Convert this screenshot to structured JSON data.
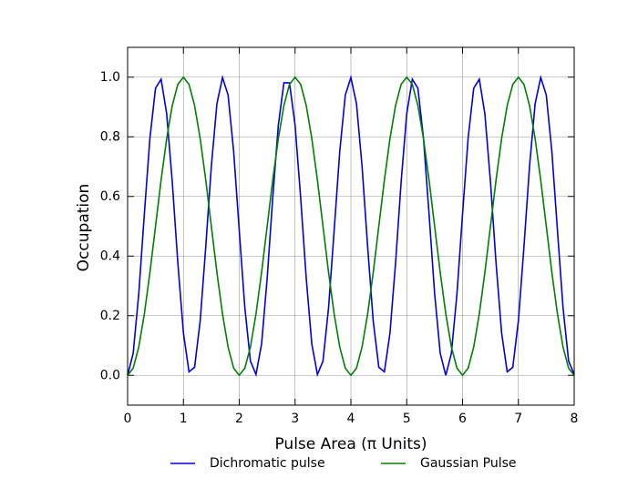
{
  "chart_data": {
    "type": "line",
    "xlabel": "Pulse Area (π Units)",
    "ylabel": "Occupation",
    "x": [
      0,
      0.1,
      0.2,
      0.3,
      0.4,
      0.5,
      0.6,
      0.7,
      0.8,
      0.9,
      1.0,
      1.1,
      1.2,
      1.3,
      1.4,
      1.5,
      1.6,
      1.7,
      1.8,
      1.9,
      2.0,
      2.1,
      2.2,
      2.3,
      2.4,
      2.5,
      2.6,
      2.7,
      2.8,
      2.9,
      3.0,
      3.1,
      3.2,
      3.3,
      3.4,
      3.5,
      3.6,
      3.7,
      3.8,
      3.9,
      4.0,
      4.1,
      4.2,
      4.3,
      4.4,
      4.5,
      4.6,
      4.7,
      4.8,
      4.9,
      5.0,
      5.1,
      5.2,
      5.3,
      5.4,
      5.5,
      5.6,
      5.7,
      5.8,
      5.9,
      6.0,
      6.1,
      6.2,
      6.3,
      6.4,
      6.5,
      6.6,
      6.7,
      6.8,
      6.9,
      7.0,
      7.1,
      7.2,
      7.3,
      7.4,
      7.5,
      7.6,
      7.7,
      7.8,
      7.9,
      8.0
    ],
    "series": [
      {
        "name": "Dichromatic pulse",
        "color": "#0000e0",
        "values": [
          0,
          0.074,
          0.274,
          0.541,
          0.796,
          0.963,
          0.993,
          0.877,
          0.649,
          0.377,
          0.142,
          0.012,
          0.027,
          0.182,
          0.431,
          0.701,
          0.911,
          0.999,
          0.94,
          0.75,
          0.486,
          0.227,
          0.048,
          0.003,
          0.105,
          0.325,
          0.596,
          0.839,
          0.981,
          0.981,
          0.839,
          0.596,
          0.325,
          0.105,
          0.003,
          0.048,
          0.227,
          0.486,
          0.75,
          0.94,
          0.999,
          0.911,
          0.701,
          0.431,
          0.182,
          0.027,
          0.012,
          0.142,
          0.377,
          0.649,
          0.877,
          0.993,
          0.963,
          0.796,
          0.541,
          0.274,
          0.074,
          0,
          0.074,
          0.274,
          0.541,
          0.796,
          0.963,
          0.993,
          0.877,
          0.649,
          0.377,
          0.142,
          0.012,
          0.027,
          0.182,
          0.431,
          0.701,
          0.911,
          0.999,
          0.94,
          0.75,
          0.486,
          0.227,
          0.048,
          0.003
        ]
      },
      {
        "name": "Gaussian Pulse",
        "color": "#007f00",
        "values": [
          0,
          0.024,
          0.095,
          0.206,
          0.345,
          0.5,
          0.655,
          0.794,
          0.905,
          0.976,
          1,
          0.976,
          0.905,
          0.794,
          0.655,
          0.5,
          0.345,
          0.206,
          0.095,
          0.024,
          0,
          0.024,
          0.095,
          0.206,
          0.345,
          0.5,
          0.655,
          0.794,
          0.905,
          0.976,
          1,
          0.976,
          0.905,
          0.794,
          0.655,
          0.5,
          0.345,
          0.206,
          0.095,
          0.024,
          0,
          0.024,
          0.095,
          0.206,
          0.345,
          0.5,
          0.655,
          0.794,
          0.905,
          0.976,
          1,
          0.976,
          0.905,
          0.794,
          0.655,
          0.5,
          0.345,
          0.206,
          0.095,
          0.024,
          0,
          0.024,
          0.095,
          0.206,
          0.345,
          0.5,
          0.655,
          0.794,
          0.905,
          0.976,
          1,
          0.976,
          0.905,
          0.794,
          0.655,
          0.5,
          0.345,
          0.206,
          0.095,
          0.024,
          0
        ]
      }
    ],
    "xlim": [
      0,
      8
    ],
    "ylim": [
      -0.1,
      1.1
    ],
    "xticks": [
      0,
      1,
      2,
      3,
      4,
      5,
      6,
      7,
      8
    ],
    "yticks": [
      {
        "value": 0,
        "label": "0.0"
      },
      0.2,
      0.4,
      0.6,
      0.8,
      {
        "value": 1,
        "label": "1.0"
      }
    ],
    "grid": true,
    "legend": "lower center"
  }
}
